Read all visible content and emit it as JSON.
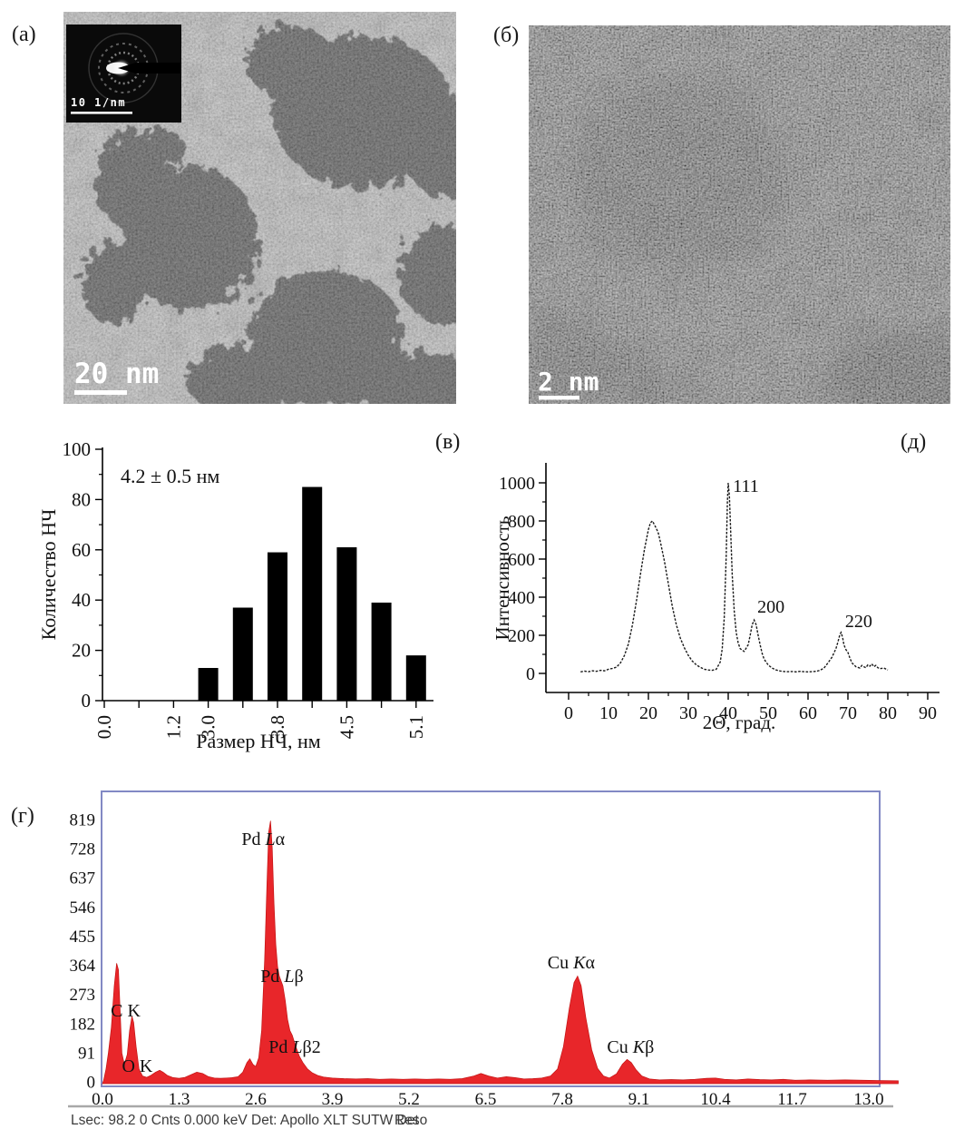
{
  "panels": {
    "a": {
      "label": "(а)"
    },
    "b": {
      "label": "(б)"
    },
    "v": {
      "label": "(в)"
    },
    "g": {
      "label": "(г)"
    },
    "d": {
      "label": "(д)"
    }
  },
  "tem_a": {
    "scale_bar": "20 nm",
    "inset_scale": "10 1/nm"
  },
  "tem_b": {
    "scale_bar": "2 nm"
  },
  "chart_data": [
    {
      "id": "histogram",
      "type": "bar",
      "panel": "(в)",
      "annotation": "4.2 ± 0.5 нм",
      "xlabel": "Размер НЧ, нм",
      "ylabel": "Количество НЧ",
      "tick_labels": [
        "0.0",
        "",
        "1.2",
        "3.0",
        "",
        "3.8",
        "",
        "4.5",
        "",
        "5.1"
      ],
      "values": [
        0,
        0,
        0,
        13,
        37,
        59,
        85,
        61,
        39,
        18
      ],
      "yticks": [
        0,
        20,
        40,
        60,
        80,
        100
      ],
      "ylim": [
        0,
        100
      ],
      "bar_color": "#000000"
    },
    {
      "id": "xrd",
      "type": "line",
      "panel": "(д)",
      "xlabel": "2Θ, град.",
      "ylabel": "Интенсивность",
      "xticks": [
        0,
        10,
        20,
        30,
        40,
        50,
        60,
        70,
        80,
        90
      ],
      "yticks": [
        0,
        200,
        400,
        600,
        800,
        1000
      ],
      "xlim": [
        0,
        90
      ],
      "ylim": [
        0,
        1000
      ],
      "line_color": "#1a1a1a",
      "peak_labels": [
        {
          "text": "111",
          "x": 41.2,
          "y": 952
        },
        {
          "text": "200",
          "x": 47.3,
          "y": 319
        },
        {
          "text": "220",
          "x": 69.3,
          "y": 243
        }
      ],
      "points": [
        [
          3,
          8
        ],
        [
          4,
          12
        ],
        [
          5,
          9
        ],
        [
          6,
          14
        ],
        [
          7,
          11
        ],
        [
          8,
          16
        ],
        [
          9,
          14
        ],
        [
          10,
          22
        ],
        [
          11,
          26
        ],
        [
          12,
          33
        ],
        [
          13,
          55
        ],
        [
          14,
          95
        ],
        [
          15,
          155
        ],
        [
          16,
          255
        ],
        [
          17,
          380
        ],
        [
          18,
          520
        ],
        [
          19,
          650
        ],
        [
          20,
          755
        ],
        [
          20.5,
          790
        ],
        [
          21,
          800
        ],
        [
          21.5,
          780
        ],
        [
          22,
          760
        ],
        [
          22.5,
          735
        ],
        [
          23,
          690
        ],
        [
          24,
          590
        ],
        [
          25,
          470
        ],
        [
          26,
          350
        ],
        [
          27,
          255
        ],
        [
          28,
          185
        ],
        [
          29,
          135
        ],
        [
          30,
          95
        ],
        [
          31,
          65
        ],
        [
          32,
          45
        ],
        [
          33,
          32
        ],
        [
          34,
          22
        ],
        [
          35,
          18
        ],
        [
          36,
          16
        ],
        [
          37,
          22
        ],
        [
          38,
          60
        ],
        [
          38.5,
          130
        ],
        [
          39,
          290
        ],
        [
          39.5,
          620
        ],
        [
          39.8,
          900
        ],
        [
          40,
          1000
        ],
        [
          40.3,
          930
        ],
        [
          40.6,
          760
        ],
        [
          41,
          520
        ],
        [
          41.5,
          330
        ],
        [
          42,
          215
        ],
        [
          42.5,
          160
        ],
        [
          43,
          130
        ],
        [
          44,
          115
        ],
        [
          45,
          150
        ],
        [
          45.5,
          200
        ],
        [
          46,
          255
        ],
        [
          46.5,
          280
        ],
        [
          47,
          255
        ],
        [
          47.5,
          200
        ],
        [
          48,
          150
        ],
        [
          48.5,
          105
        ],
        [
          49,
          75
        ],
        [
          50,
          45
        ],
        [
          51,
          28
        ],
        [
          52,
          18
        ],
        [
          53,
          13
        ],
        [
          54,
          10
        ],
        [
          55,
          9
        ],
        [
          56,
          10
        ],
        [
          57,
          8
        ],
        [
          58,
          11
        ],
        [
          59,
          9
        ],
        [
          60,
          8
        ],
        [
          61,
          9
        ],
        [
          62,
          11
        ],
        [
          63,
          16
        ],
        [
          64,
          28
        ],
        [
          65,
          55
        ],
        [
          66,
          85
        ],
        [
          67,
          130
        ],
        [
          67.5,
          165
        ],
        [
          68,
          205
        ],
        [
          68.3,
          215
        ],
        [
          68.7,
          185
        ],
        [
          69,
          150
        ],
        [
          69.5,
          125
        ],
        [
          70,
          110
        ],
        [
          70.5,
          80
        ],
        [
          71,
          55
        ],
        [
          72,
          35
        ],
        [
          73,
          28
        ],
        [
          73.5,
          42
        ],
        [
          74,
          35
        ],
        [
          74.5,
          30
        ],
        [
          75,
          45
        ],
        [
          75.5,
          38
        ],
        [
          76,
          50
        ],
        [
          76.5,
          35
        ],
        [
          77,
          42
        ],
        [
          77.5,
          30
        ],
        [
          78,
          25
        ],
        [
          79,
          28
        ],
        [
          80,
          18
        ]
      ]
    },
    {
      "id": "edx",
      "type": "area",
      "panel": "(г)",
      "fill_color": "#e8262a",
      "stroke_color": "#c41414",
      "frame_color": "#8289c4",
      "xticks": [
        "0.0",
        "1.3",
        "2.6",
        "3.9",
        "5.2",
        "6.5",
        "7.8",
        "9.1",
        "10.4",
        "11.7",
        "13.0"
      ],
      "yticks": [
        819,
        728,
        637,
        546,
        455,
        364,
        273,
        182,
        91,
        0
      ],
      "xlim": [
        0,
        13.5
      ],
      "ylim": [
        0,
        819
      ],
      "peak_labels": [
        {
          "element": "C",
          "line": "K",
          "italic": false,
          "x": 0.14,
          "y": 204
        },
        {
          "element": "O",
          "line": "K",
          "italic": false,
          "x": 0.33,
          "y": 31
        },
        {
          "element": "Pd",
          "line": "Lα",
          "italic": true,
          "x": 2.36,
          "y": 740
        },
        {
          "element": "Pd",
          "line": "Lβ",
          "italic": true,
          "x": 2.68,
          "y": 312
        },
        {
          "element": "Pd",
          "line": "Lβ2",
          "italic": true,
          "x": 2.82,
          "y": 91
        },
        {
          "element": "Cu",
          "line": "Kα",
          "italic": true,
          "x": 7.55,
          "y": 354
        },
        {
          "element": "Cu",
          "line": "Kβ",
          "italic": true,
          "x": 8.56,
          "y": 91
        }
      ],
      "footer_left": "Lsec: 98.2 0 Cnts  0.000 keV Det: Apollo XLT SUTW Det",
      "footer_right": "Reso",
      "points": [
        [
          0.02,
          5
        ],
        [
          0.06,
          40
        ],
        [
          0.1,
          90
        ],
        [
          0.15,
          170
        ],
        [
          0.2,
          300
        ],
        [
          0.24,
          370
        ],
        [
          0.27,
          350
        ],
        [
          0.3,
          220
        ],
        [
          0.33,
          90
        ],
        [
          0.37,
          55
        ],
        [
          0.42,
          85
        ],
        [
          0.46,
          160
        ],
        [
          0.5,
          205
        ],
        [
          0.53,
          185
        ],
        [
          0.57,
          110
        ],
        [
          0.62,
          40
        ],
        [
          0.68,
          18
        ],
        [
          0.75,
          14
        ],
        [
          0.82,
          20
        ],
        [
          0.9,
          30
        ],
        [
          0.97,
          36
        ],
        [
          1.03,
          30
        ],
        [
          1.1,
          20
        ],
        [
          1.2,
          13
        ],
        [
          1.3,
          11
        ],
        [
          1.4,
          14
        ],
        [
          1.5,
          22
        ],
        [
          1.6,
          30
        ],
        [
          1.7,
          26
        ],
        [
          1.8,
          16
        ],
        [
          1.9,
          12
        ],
        [
          2.0,
          11
        ],
        [
          2.1,
          12
        ],
        [
          2.2,
          13
        ],
        [
          2.3,
          16
        ],
        [
          2.38,
          30
        ],
        [
          2.45,
          60
        ],
        [
          2.5,
          72
        ],
        [
          2.55,
          55
        ],
        [
          2.6,
          48
        ],
        [
          2.65,
          75
        ],
        [
          2.7,
          160
        ],
        [
          2.75,
          380
        ],
        [
          2.79,
          620
        ],
        [
          2.82,
          780
        ],
        [
          2.85,
          815
        ],
        [
          2.88,
          730
        ],
        [
          2.91,
          560
        ],
        [
          2.94,
          430
        ],
        [
          2.97,
          360
        ],
        [
          3.0,
          330
        ],
        [
          3.03,
          315
        ],
        [
          3.06,
          300
        ],
        [
          3.1,
          255
        ],
        [
          3.14,
          195
        ],
        [
          3.18,
          160
        ],
        [
          3.22,
          145
        ],
        [
          3.28,
          110
        ],
        [
          3.34,
          80
        ],
        [
          3.4,
          60
        ],
        [
          3.48,
          40
        ],
        [
          3.56,
          28
        ],
        [
          3.65,
          20
        ],
        [
          3.75,
          15
        ],
        [
          3.9,
          12
        ],
        [
          4.1,
          10
        ],
        [
          4.3,
          9
        ],
        [
          4.5,
          10
        ],
        [
          4.7,
          8
        ],
        [
          4.9,
          9
        ],
        [
          5.1,
          8
        ],
        [
          5.3,
          9
        ],
        [
          5.5,
          8
        ],
        [
          5.7,
          9
        ],
        [
          5.9,
          8
        ],
        [
          6.1,
          10
        ],
        [
          6.3,
          18
        ],
        [
          6.42,
          26
        ],
        [
          6.55,
          18
        ],
        [
          6.7,
          12
        ],
        [
          6.85,
          16
        ],
        [
          7.0,
          13
        ],
        [
          7.15,
          9
        ],
        [
          7.3,
          10
        ],
        [
          7.45,
          12
        ],
        [
          7.6,
          18
        ],
        [
          7.72,
          40
        ],
        [
          7.82,
          110
        ],
        [
          7.92,
          230
        ],
        [
          8.0,
          310
        ],
        [
          8.06,
          330
        ],
        [
          8.12,
          300
        ],
        [
          8.2,
          200
        ],
        [
          8.3,
          100
        ],
        [
          8.4,
          42
        ],
        [
          8.5,
          18
        ],
        [
          8.6,
          12
        ],
        [
          8.72,
          25
        ],
        [
          8.82,
          55
        ],
        [
          8.9,
          70
        ],
        [
          8.97,
          60
        ],
        [
          9.05,
          38
        ],
        [
          9.15,
          18
        ],
        [
          9.28,
          9
        ],
        [
          9.45,
          6
        ],
        [
          9.65,
          7
        ],
        [
          9.85,
          6
        ],
        [
          10.05,
          8
        ],
        [
          10.25,
          11
        ],
        [
          10.4,
          12
        ],
        [
          10.55,
          8
        ],
        [
          10.75,
          6
        ],
        [
          10.95,
          9
        ],
        [
          11.15,
          7
        ],
        [
          11.35,
          6
        ],
        [
          11.55,
          8
        ],
        [
          11.75,
          5
        ],
        [
          12.0,
          6
        ],
        [
          12.3,
          5
        ],
        [
          12.6,
          6
        ],
        [
          12.9,
          5
        ],
        [
          13.2,
          4
        ],
        [
          13.5,
          3
        ]
      ]
    }
  ]
}
